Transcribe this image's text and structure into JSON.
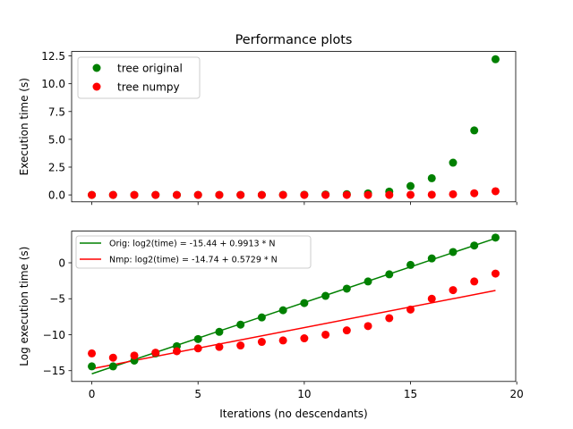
{
  "title": "Performance plots",
  "colors": {
    "original": "#008000",
    "numpy": "#ff0000"
  },
  "chart_data": [
    {
      "type": "scatter",
      "title": "Performance plots",
      "xlabel": "",
      "ylabel": "Execution time (s)",
      "xlim": [
        -0.95,
        19.95
      ],
      "ylim": [
        -0.62,
        12.9
      ],
      "yticks": [
        0.0,
        2.5,
        5.0,
        7.5,
        10.0,
        12.5
      ],
      "ytick_labels": [
        "0.0",
        "2.5",
        "5.0",
        "7.5",
        "10.0",
        "12.5"
      ],
      "xticks": [
        0,
        5,
        10,
        15,
        20
      ],
      "legend_position": "top-left",
      "x": [
        0,
        1,
        2,
        3,
        4,
        5,
        6,
        7,
        8,
        9,
        10,
        11,
        12,
        13,
        14,
        15,
        16,
        17,
        18,
        19
      ],
      "series": [
        {
          "name": "tree original",
          "color": "#008000",
          "values": [
            0.0,
            0.0,
            0.0,
            0.0,
            0.0,
            0.0,
            0.0,
            0.0,
            0.0,
            0.01,
            0.02,
            0.04,
            0.07,
            0.14,
            0.3,
            0.8,
            1.5,
            2.9,
            5.8,
            12.2
          ]
        },
        {
          "name": "tree numpy",
          "color": "#ff0000",
          "values": [
            0.0,
            0.0,
            0.0,
            0.0,
            0.0,
            0.0,
            0.0,
            0.0,
            0.0,
            0.0,
            0.0,
            0.0,
            0.0,
            0.0,
            0.0,
            0.01,
            0.02,
            0.06,
            0.15,
            0.33
          ]
        }
      ]
    },
    {
      "type": "scatter",
      "title": "",
      "xlabel": "Iterations (no descendants)",
      "ylabel": "Log execution time (s)",
      "xlim": [
        -0.95,
        19.95
      ],
      "ylim": [
        -16.5,
        4.4
      ],
      "yticks": [
        -15,
        -10,
        -5,
        0
      ],
      "ytick_labels": [
        "−15",
        "−10",
        "−5",
        "0"
      ],
      "xticks": [
        0,
        5,
        10,
        15,
        20
      ],
      "xtick_labels": [
        "0",
        "5",
        "10",
        "15",
        "20"
      ],
      "legend_position": "top-left",
      "x": [
        0,
        1,
        2,
        3,
        4,
        5,
        6,
        7,
        8,
        9,
        10,
        11,
        12,
        13,
        14,
        15,
        16,
        17,
        18,
        19
      ],
      "series": [
        {
          "name": "tree original",
          "color": "#008000",
          "values": [
            -14.4,
            -14.4,
            -13.6,
            -12.6,
            -11.6,
            -10.6,
            -9.6,
            -8.6,
            -7.6,
            -6.6,
            -5.6,
            -4.6,
            -3.6,
            -2.6,
            -1.6,
            -0.3,
            0.6,
            1.5,
            2.4,
            3.5
          ]
        },
        {
          "name": "tree numpy",
          "color": "#ff0000",
          "values": [
            -12.6,
            -13.2,
            -12.9,
            -12.5,
            -12.3,
            -11.9,
            -11.7,
            -11.5,
            -11.0,
            -10.8,
            -10.5,
            -10.0,
            -9.4,
            -8.8,
            -7.7,
            -6.5,
            -5.0,
            -3.8,
            -2.6,
            -1.5
          ]
        }
      ],
      "fit_lines": [
        {
          "label": "Orig: log2(time) = -15.44 + 0.9913 * N",
          "intercept": -15.44,
          "slope": 0.9913,
          "color": "#008000"
        },
        {
          "label": "Nmp: log2(time) = -14.74 + 0.5729 * N",
          "intercept": -14.74,
          "slope": 0.5729,
          "color": "#ff0000"
        }
      ]
    }
  ]
}
